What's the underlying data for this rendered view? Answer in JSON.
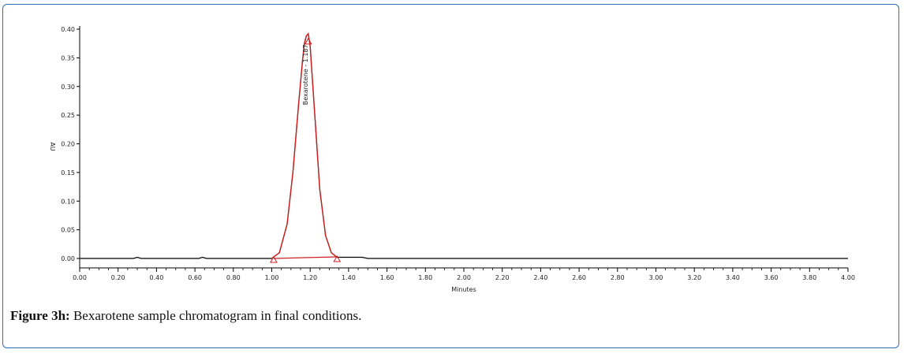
{
  "figure": {
    "caption_label": "Figure 3h:",
    "caption_text": " Bexarotene sample chromatogram in final conditions."
  },
  "chart_data": {
    "type": "line",
    "xlabel": "Minutes",
    "ylabel": "AU",
    "xlim": [
      0.0,
      4.0
    ],
    "ylim": [
      -0.01,
      0.4
    ],
    "x_ticks": [
      "0.00",
      "0.20",
      "0.40",
      "0.60",
      "0.80",
      "1.00",
      "1.20",
      "1.40",
      "1.60",
      "1.80",
      "2.00",
      "2.20",
      "2.40",
      "2.60",
      "2.80",
      "3.00",
      "3.20",
      "3.40",
      "3.60",
      "3.80",
      "4.00"
    ],
    "y_ticks": [
      "0.00",
      "0.05",
      "0.10",
      "0.15",
      "0.20",
      "0.25",
      "0.30",
      "0.35",
      "0.40"
    ],
    "grid": false,
    "colors": {
      "trace": "#000000",
      "integration": "#cc1f1f",
      "frame": "#2f6db0"
    },
    "series": [
      {
        "name": "",
        "x": [
          0.0,
          0.28,
          0.3,
          0.32,
          0.62,
          0.64,
          0.66,
          1.0,
          1.04,
          1.08,
          1.11,
          1.14,
          1.16,
          1.17,
          1.18,
          1.19,
          1.2,
          1.22,
          1.25,
          1.28,
          1.31,
          1.34,
          1.4,
          1.47,
          1.5,
          4.0
        ],
        "y": [
          0.0,
          0.0,
          0.002,
          0.0,
          0.0,
          0.002,
          0.0,
          0.0,
          0.01,
          0.06,
          0.15,
          0.27,
          0.345,
          0.375,
          0.388,
          0.392,
          0.37,
          0.27,
          0.12,
          0.04,
          0.01,
          0.002,
          0.002,
          0.002,
          0.0,
          0.0
        ]
      }
    ],
    "peaks": [
      {
        "label": "Bexarotene - 1.187",
        "apex_x": 1.19,
        "apex_y": 0.392,
        "start_x": 1.01,
        "end_x": 1.34
      }
    ]
  }
}
